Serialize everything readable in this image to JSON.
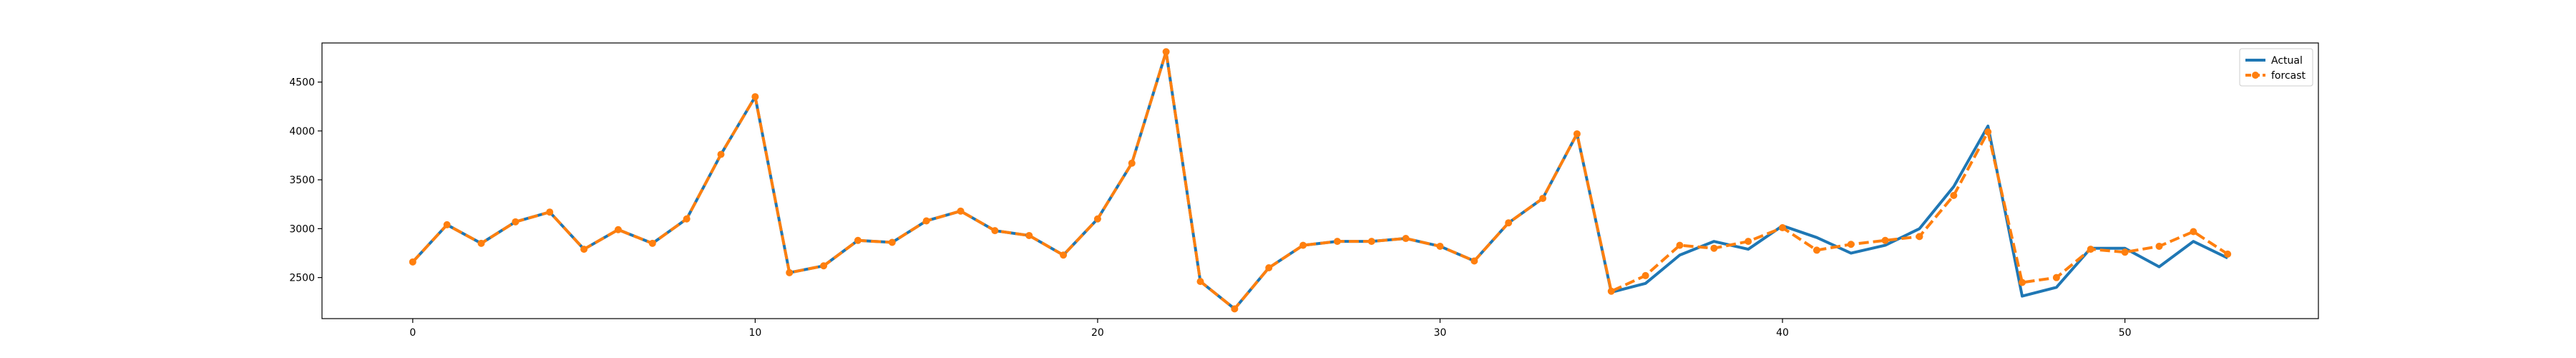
{
  "chart_data": {
    "type": "line",
    "title": "",
    "xlabel": "",
    "ylabel": "",
    "xlim": [
      -2.65,
      55.65
    ],
    "ylim": [
      2080,
      4900
    ],
    "x_ticks": [
      0,
      10,
      20,
      30,
      40,
      50
    ],
    "y_ticks": [
      2500,
      3000,
      3500,
      4000,
      4500
    ],
    "grid": false,
    "legend_position": "top-right",
    "x": [
      0,
      1,
      2,
      3,
      4,
      5,
      6,
      7,
      8,
      9,
      10,
      11,
      12,
      13,
      14,
      15,
      16,
      17,
      18,
      19,
      20,
      21,
      22,
      23,
      24,
      25,
      26,
      27,
      28,
      29,
      30,
      31,
      32,
      33,
      34,
      35,
      36,
      37,
      38,
      39,
      40,
      41,
      42,
      43,
      44,
      45,
      46,
      47,
      48,
      49,
      50,
      51,
      52,
      53
    ],
    "series": [
      {
        "name": "Actual",
        "color": "#1f77b4",
        "style": "solid",
        "values": [
          2660,
          3040,
          2850,
          3070,
          3170,
          2790,
          2990,
          2850,
          3100,
          3760,
          4350,
          2550,
          2620,
          2880,
          2860,
          3080,
          3180,
          2980,
          2930,
          2730,
          3100,
          3670,
          4810,
          2460,
          2180,
          2600,
          2830,
          2870,
          2870,
          2900,
          2820,
          2670,
          3060,
          3310,
          3970,
          2350,
          2440,
          2730,
          2870,
          2790,
          3030,
          2910,
          2750,
          2830,
          3000,
          3430,
          4050,
          2310,
          2400,
          2800,
          2800,
          2610,
          2870,
          2700
        ]
      },
      {
        "name": "forcast",
        "color": "#ff7f0e",
        "style": "dashed",
        "marker": "circle",
        "values": [
          2660,
          3040,
          2850,
          3070,
          3170,
          2790,
          2990,
          2850,
          3100,
          3760,
          4350,
          2550,
          2620,
          2880,
          2860,
          3080,
          3180,
          2980,
          2930,
          2730,
          3100,
          3670,
          4810,
          2460,
          2180,
          2600,
          2830,
          2870,
          2870,
          2900,
          2820,
          2670,
          3060,
          3310,
          3970,
          2360,
          2520,
          2830,
          2800,
          2870,
          3010,
          2780,
          2840,
          2880,
          2920,
          3340,
          3990,
          2450,
          2500,
          2790,
          2760,
          2820,
          2970,
          2740
        ]
      }
    ]
  }
}
